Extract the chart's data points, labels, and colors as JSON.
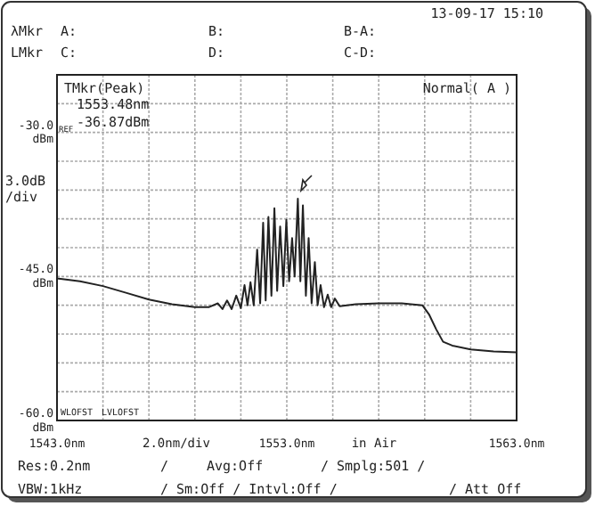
{
  "chart_data": {
    "type": "line",
    "annotations": [
      "13-09-17 15:10",
      "λMkr",
      "A:",
      "B:",
      "B-A:",
      "LMkr",
      "C:",
      "D:",
      "C-D:",
      "TMkr(Peak)",
      "1553.48nm",
      "REF",
      "-36.87dBm",
      "Normal( A )",
      "WLOFST",
      "LVLOFST",
      "in Air",
      "Res:0.2nm",
      "/",
      "Avg:Off",
      "/ Smplg:501 /",
      "VBW:1kHz",
      "/ Sm:Off / Intvl:Off /",
      "/ Att Off"
    ],
    "x": [
      1543,
      1544,
      1545,
      1546,
      1547,
      1548,
      1549,
      1549.6,
      1550.0,
      1550.2,
      1550.4,
      1550.6,
      1550.8,
      1551.0,
      1551.16,
      1551.29,
      1551.42,
      1551.56,
      1551.71,
      1551.84,
      1551.97,
      1552.08,
      1552.2,
      1552.33,
      1552.46,
      1552.58,
      1552.71,
      1552.85,
      1552.98,
      1553.1,
      1553.23,
      1553.34,
      1553.48,
      1553.59,
      1553.7,
      1553.83,
      1553.95,
      1554.08,
      1554.22,
      1554.34,
      1554.47,
      1554.62,
      1554.78,
      1554.93,
      1555.09,
      1555.3,
      1556,
      1557,
      1558,
      1558.9,
      1559.2,
      1559.5,
      1559.8,
      1560.2,
      1561,
      1562,
      1563
    ],
    "series": [
      {
        "color": "#222222",
        "values": [
          -45.2,
          -45.5,
          -46.0,
          -46.7,
          -47.4,
          -47.9,
          -48.2,
          -48.2,
          -47.8,
          -48.4,
          -47.5,
          -48.4,
          -47.0,
          -48.3,
          -45.9,
          -48.0,
          -45.6,
          -48.0,
          -42.2,
          -47.8,
          -39.4,
          -47.5,
          -38.8,
          -47.0,
          -37.9,
          -46.5,
          -39.8,
          -46.0,
          -39.1,
          -45.5,
          -41.0,
          -45.0,
          -36.9,
          -45.5,
          -37.6,
          -47.0,
          -41.0,
          -47.8,
          -43.5,
          -48.0,
          -45.9,
          -48.2,
          -46.9,
          -48.2,
          -47.3,
          -48.1,
          -47.9,
          -47.8,
          -47.8,
          -48.0,
          -49.0,
          -50.5,
          -51.8,
          -52.2,
          -52.6,
          -52.8,
          -52.9
        ]
      }
    ],
    "xlim": [
      1543,
      1563
    ],
    "xticks": [
      {
        "value": 1543,
        "label": "1543.0nm"
      },
      {
        "value": 1553,
        "label": "1553.0nm"
      },
      {
        "value": 1563,
        "label": "1563.0nm"
      }
    ],
    "ylim": [
      -60,
      -24
    ],
    "yticks": [
      {
        "value": -30,
        "label": "-30.0 dBm"
      },
      {
        "value": -45,
        "label": "-45.0 dBm"
      },
      {
        "value": -60,
        "label": "-60.0 dBm"
      }
    ],
    "xlabel": "2.0nm/div",
    "ylabel": "3.0dB /div",
    "grid": true,
    "marker": "none",
    "line_style": "solid"
  }
}
